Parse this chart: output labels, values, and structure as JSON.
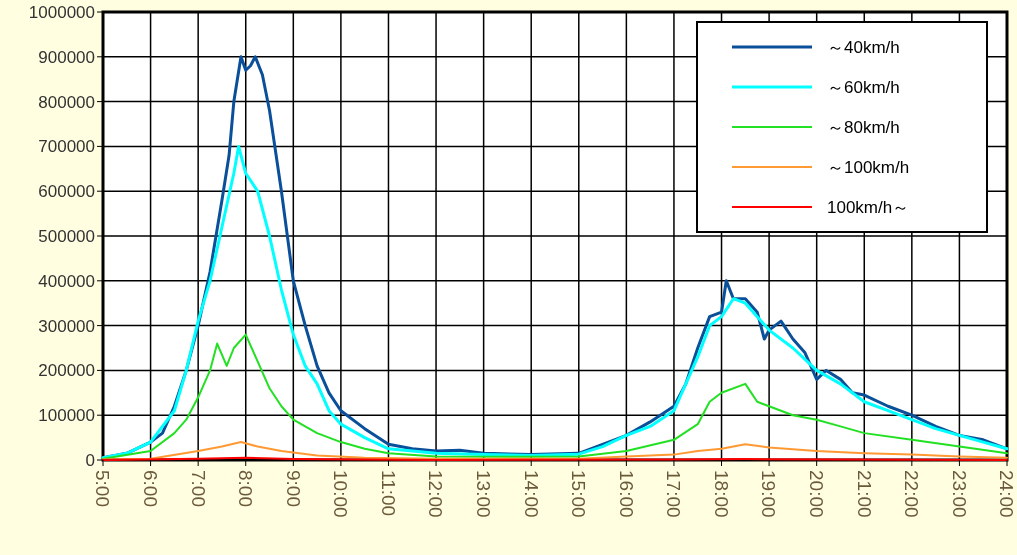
{
  "chart_data": {
    "type": "line",
    "xlim": [
      5,
      24
    ],
    "ylim": [
      0,
      1000000
    ],
    "xticks": [
      {
        "value": 5,
        "label": "5:00"
      },
      {
        "value": 6,
        "label": "6:00"
      },
      {
        "value": 7,
        "label": "7:00"
      },
      {
        "value": 8,
        "label": "8:00"
      },
      {
        "value": 9,
        "label": "9:00"
      },
      {
        "value": 10,
        "label": "10:00"
      },
      {
        "value": 11,
        "label": "11:00"
      },
      {
        "value": 12,
        "label": "12:00"
      },
      {
        "value": 13,
        "label": "13:00"
      },
      {
        "value": 14,
        "label": "14:00"
      },
      {
        "value": 15,
        "label": "15:00"
      },
      {
        "value": 16,
        "label": "16:00"
      },
      {
        "value": 17,
        "label": "17:00"
      },
      {
        "value": 18,
        "label": "18:00"
      },
      {
        "value": 19,
        "label": "19:00"
      },
      {
        "value": 20,
        "label": "20:00"
      },
      {
        "value": 21,
        "label": "21:00"
      },
      {
        "value": 22,
        "label": "22:00"
      },
      {
        "value": 23,
        "label": "23:00"
      },
      {
        "value": 24,
        "label": "24:00"
      }
    ],
    "yticks": [
      0,
      100000,
      200000,
      300000,
      400000,
      500000,
      600000,
      700000,
      800000,
      900000,
      1000000
    ],
    "grid": true,
    "legend": "top right",
    "marker": "none",
    "line_style": "solid",
    "series": [
      {
        "name": "～40km/h",
        "color": "#0a4f9a",
        "x": [
          5,
          5.5,
          6,
          6.25,
          6.5,
          6.75,
          7,
          7.25,
          7.5,
          7.65,
          7.75,
          7.9,
          8,
          8.1,
          8.2,
          8.35,
          8.5,
          8.75,
          9,
          9.25,
          9.5,
          9.75,
          10,
          10.5,
          11,
          11.5,
          12,
          12.5,
          13,
          14,
          15,
          15.5,
          16,
          16.5,
          17,
          17.25,
          17.5,
          17.75,
          18,
          18.1,
          18.25,
          18.5,
          18.75,
          18.9,
          19,
          19.25,
          19.5,
          19.75,
          20,
          20.2,
          20.5,
          20.75,
          21,
          21.5,
          22,
          22.5,
          23,
          23.5,
          24
        ],
        "values": [
          5000,
          15000,
          40000,
          60000,
          120000,
          200000,
          300000,
          420000,
          580000,
          680000,
          800000,
          900000,
          870000,
          880000,
          900000,
          860000,
          780000,
          600000,
          400000,
          300000,
          210000,
          150000,
          110000,
          70000,
          35000,
          25000,
          20000,
          22000,
          15000,
          12000,
          15000,
          35000,
          55000,
          85000,
          120000,
          170000,
          250000,
          320000,
          330000,
          400000,
          360000,
          360000,
          330000,
          270000,
          290000,
          310000,
          270000,
          240000,
          180000,
          200000,
          180000,
          150000,
          145000,
          120000,
          100000,
          75000,
          55000,
          45000,
          25000
        ]
      },
      {
        "name": "～60km/h",
        "color": "#00ffff",
        "x": [
          5,
          5.5,
          6,
          6.5,
          6.75,
          7,
          7.25,
          7.5,
          7.75,
          7.85,
          8,
          8.25,
          8.5,
          8.75,
          9,
          9.25,
          9.5,
          9.75,
          10,
          10.5,
          11,
          12,
          13,
          14,
          15,
          15.5,
          16,
          16.5,
          17,
          17.5,
          17.75,
          18,
          18.25,
          18.5,
          18.75,
          19,
          19.5,
          20,
          20.5,
          21,
          21.5,
          22,
          22.5,
          23,
          23.5,
          24
        ],
        "values": [
          5000,
          15000,
          40000,
          110000,
          200000,
          310000,
          400000,
          520000,
          640000,
          700000,
          640000,
          600000,
          500000,
          380000,
          280000,
          210000,
          170000,
          110000,
          80000,
          50000,
          25000,
          15000,
          12000,
          10000,
          13000,
          30000,
          55000,
          75000,
          110000,
          230000,
          300000,
          320000,
          360000,
          350000,
          320000,
          290000,
          250000,
          200000,
          170000,
          130000,
          110000,
          90000,
          70000,
          55000,
          40000,
          25000
        ]
      },
      {
        "name": "～80km/h",
        "color": "#22e022",
        "x": [
          5,
          6,
          6.5,
          6.75,
          7,
          7.25,
          7.4,
          7.6,
          7.75,
          8,
          8.25,
          8.5,
          8.75,
          9,
          9.5,
          10,
          10.5,
          11,
          12,
          14,
          15,
          16,
          17,
          17.5,
          17.75,
          18,
          18.5,
          18.75,
          19,
          19.5,
          20,
          20.5,
          21,
          22,
          23,
          24
        ],
        "values": [
          3000,
          20000,
          60000,
          90000,
          140000,
          200000,
          260000,
          210000,
          250000,
          280000,
          220000,
          160000,
          120000,
          90000,
          60000,
          40000,
          25000,
          15000,
          8000,
          7000,
          8000,
          20000,
          45000,
          80000,
          130000,
          150000,
          170000,
          130000,
          120000,
          100000,
          90000,
          75000,
          60000,
          45000,
          30000,
          15000
        ]
      },
      {
        "name": "～100km/h",
        "color": "#ff9933",
        "x": [
          5,
          6,
          7,
          7.5,
          7.9,
          8.25,
          8.75,
          9.5,
          10.5,
          12,
          15,
          16,
          17,
          17.5,
          18,
          18.5,
          19,
          20,
          21,
          22,
          23,
          24
        ],
        "values": [
          1000,
          3000,
          20000,
          30000,
          40000,
          30000,
          20000,
          10000,
          5000,
          3000,
          3000,
          8000,
          12000,
          20000,
          25000,
          35000,
          28000,
          20000,
          15000,
          12000,
          8000,
          5000
        ]
      },
      {
        "name": "100km/h～",
        "color": "#ff0000",
        "x": [
          5,
          7,
          8,
          9,
          12,
          17,
          18.5,
          24
        ],
        "values": [
          0,
          3000,
          5000,
          2000,
          0,
          1000,
          2000,
          0
        ]
      }
    ]
  }
}
